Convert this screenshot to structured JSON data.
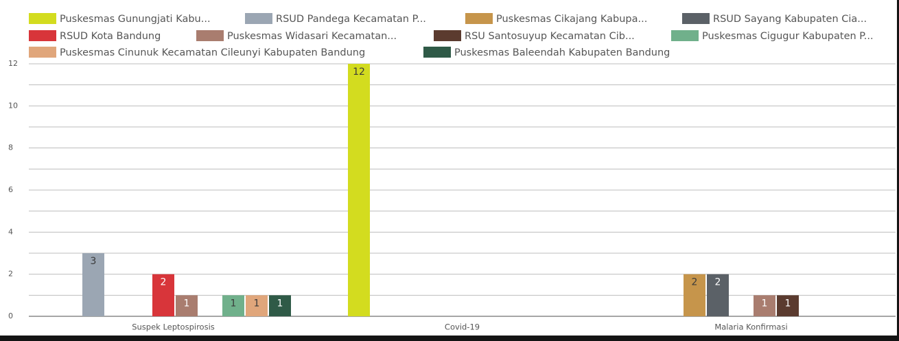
{
  "chart_data": {
    "type": "bar",
    "categories": [
      "Suspek Leptospirosis",
      "Covid-19",
      "Malaria Konfirmasi"
    ],
    "series": [
      {
        "name": "Puskesmas Gunungjati Kabu...",
        "color": "#d3dc1f",
        "values": [
          0,
          12,
          0
        ]
      },
      {
        "name": "RSUD Pandega Kecamatan P...",
        "color": "#9ba6b3",
        "values": [
          3,
          0,
          0
        ]
      },
      {
        "name": "Puskesmas Cikajang Kabupa...",
        "color": "#c6954b",
        "values": [
          0,
          0,
          2
        ]
      },
      {
        "name": "RSUD Sayang Kabupaten Cia...",
        "color": "#5b6167",
        "values": [
          0,
          0,
          2
        ]
      },
      {
        "name": "RSUD Kota Bandung",
        "color": "#d8353a",
        "values": [
          2,
          0,
          0
        ]
      },
      {
        "name": "Puskesmas Widasari Kecamatan...",
        "color": "#a97d6f",
        "values": [
          1,
          0,
          1
        ]
      },
      {
        "name": "RSU Santosuyup Kecamatan Cib...",
        "color": "#5b3b2f",
        "values": [
          0,
          0,
          1
        ]
      },
      {
        "name": "Puskesmas Cigugur Kabupaten P...",
        "color": "#70b08b",
        "values": [
          1,
          0,
          0
        ]
      },
      {
        "name": "Puskesmas Cinunuk Kecamatan Cileunyi Kabupaten Bandung",
        "color": "#e0a67b",
        "values": [
          1,
          0,
          0
        ]
      },
      {
        "name": "Puskesmas Baleendah Kabupaten Bandung",
        "color": "#2f5a47",
        "values": [
          1,
          0,
          0
        ]
      }
    ],
    "ylim": [
      0,
      12
    ],
    "yticks": [
      0,
      2,
      4,
      6,
      8,
      10,
      12
    ],
    "grid": true,
    "minor_grid": true,
    "legend": "top"
  }
}
